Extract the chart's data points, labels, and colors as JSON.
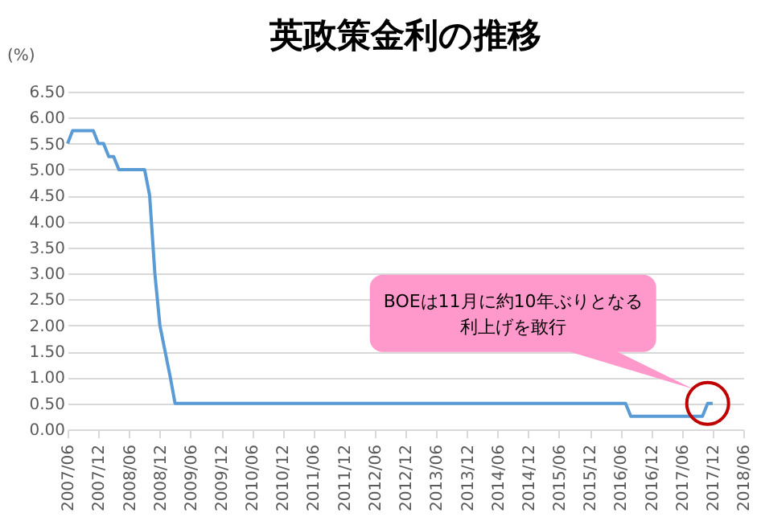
{
  "chart_data": {
    "type": "line",
    "title": "英政策金利の推移",
    "ylabel": "(%)",
    "x": [
      "2007-06",
      "2007-07",
      "2007-11",
      "2007-12",
      "2008-01",
      "2008-02",
      "2008-03",
      "2008-04",
      "2008-09",
      "2008-10",
      "2008-11",
      "2008-12",
      "2009-01",
      "2009-02",
      "2009-03",
      "2016-07",
      "2016-08",
      "2017-10",
      "2017-11",
      "2017-12"
    ],
    "series": [
      {
        "color": "#5b9bd5",
        "values": [
          5.5,
          5.75,
          5.75,
          5.5,
          5.5,
          5.25,
          5.25,
          5.0,
          5.0,
          4.5,
          3.0,
          2.0,
          1.5,
          1.0,
          0.5,
          0.5,
          0.25,
          0.25,
          0.5,
          0.5
        ]
      }
    ],
    "xlim": [
      "2007-06",
      "2018-06"
    ],
    "xticks": [
      {
        "value": "2007-06",
        "label": "2007/06"
      },
      {
        "value": "2007-12",
        "label": "2007/12"
      },
      {
        "value": "2008-06",
        "label": "2008/06"
      },
      {
        "value": "2008-12",
        "label": "2008/12"
      },
      {
        "value": "2009-06",
        "label": "2009/06"
      },
      {
        "value": "2009-12",
        "label": "2009/12"
      },
      {
        "value": "2010-06",
        "label": "2010/06"
      },
      {
        "value": "2010-12",
        "label": "2010/12"
      },
      {
        "value": "2011-06",
        "label": "2011/06"
      },
      {
        "value": "2011-12",
        "label": "2011/12"
      },
      {
        "value": "2012-06",
        "label": "2012/06"
      },
      {
        "value": "2012-12",
        "label": "2012/12"
      },
      {
        "value": "2013-06",
        "label": "2013/06"
      },
      {
        "value": "2013-12",
        "label": "2013/12"
      },
      {
        "value": "2014-06",
        "label": "2014/06"
      },
      {
        "value": "2014-12",
        "label": "2014/12"
      },
      {
        "value": "2015-06",
        "label": "2015/06"
      },
      {
        "value": "2015-12",
        "label": "2015/12"
      },
      {
        "value": "2016-06",
        "label": "2016/06"
      },
      {
        "value": "2016-12",
        "label": "2016/12"
      },
      {
        "value": "2017-06",
        "label": "2017/06"
      },
      {
        "value": "2017-12",
        "label": "2017/12"
      },
      {
        "value": "2018-06",
        "label": "2018/06"
      }
    ],
    "ylim": [
      0,
      6.5
    ],
    "yticks": [
      {
        "value": 0,
        "label": "0.00"
      },
      {
        "value": 0.5,
        "label": "0.50"
      },
      {
        "value": 1,
        "label": "1.00"
      },
      {
        "value": 1.5,
        "label": "1.50"
      },
      {
        "value": 2,
        "label": "2.00"
      },
      {
        "value": 2.5,
        "label": "2.50"
      },
      {
        "value": 3,
        "label": "3.00"
      },
      {
        "value": 3.5,
        "label": "3.50"
      },
      {
        "value": 4,
        "label": "4.00"
      },
      {
        "value": 4.5,
        "label": "4.50"
      },
      {
        "value": 5,
        "label": "5.00"
      },
      {
        "value": 5.5,
        "label": "5.50"
      },
      {
        "value": 6,
        "label": "6.00"
      },
      {
        "value": 6.5,
        "label": "6.50"
      }
    ],
    "grid": "y",
    "marker": "none",
    "line_style": "solid",
    "annotations": [
      "BOEは11月に約10年ぶりとなる利上げを敢行"
    ]
  }
}
